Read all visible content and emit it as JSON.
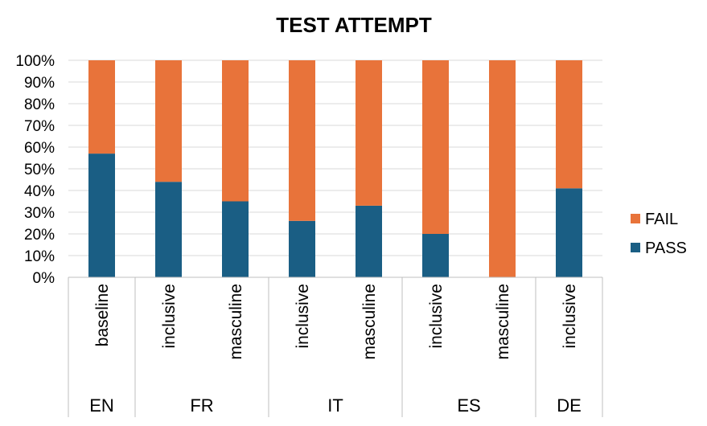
{
  "chart_data": {
    "type": "bar",
    "stacked": true,
    "percent": true,
    "title": "TEST ATTEMPT",
    "xlabel": "",
    "ylabel": "",
    "ylim": [
      0,
      100
    ],
    "y_ticks": [
      "0%",
      "10%",
      "20%",
      "30%",
      "40%",
      "50%",
      "60%",
      "70%",
      "80%",
      "90%",
      "100%"
    ],
    "grid": true,
    "legend_position": "right",
    "categories": [
      "baseline",
      "inclusive",
      "masculine",
      "inclusive",
      "masculine",
      "inclusive",
      "masculine",
      "inclusive"
    ],
    "groups": [
      {
        "label": "EN",
        "count": 1
      },
      {
        "label": "FR",
        "count": 2
      },
      {
        "label": "IT",
        "count": 2
      },
      {
        "label": "ES",
        "count": 2
      },
      {
        "label": "DE",
        "count": 1
      }
    ],
    "series": [
      {
        "name": "PASS",
        "color": "#1a5e84",
        "values": [
          57,
          44,
          35,
          26,
          33,
          20,
          0,
          41
        ]
      },
      {
        "name": "FAIL",
        "color": "#e8733a",
        "values": [
          43,
          56,
          65,
          74,
          67,
          80,
          100,
          59
        ]
      }
    ],
    "legend_order": [
      "FAIL",
      "PASS"
    ]
  }
}
